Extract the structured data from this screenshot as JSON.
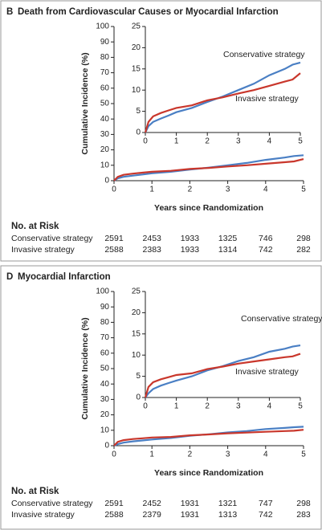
{
  "chart_data": [
    {
      "type": "line",
      "panel": "B",
      "title": "Death from Cardiovascular Causes or Myocardial Infarction",
      "ylabel": "Cumulative Incidence (%)",
      "xlabel": "Years since Randomization",
      "xlim": [
        0,
        5
      ],
      "xticks": [
        0,
        1,
        2,
        3,
        4,
        5
      ],
      "ylim": [
        0,
        100
      ],
      "yticks": [
        0,
        10,
        20,
        30,
        40,
        50,
        60,
        70,
        80,
        90,
        100
      ],
      "x": [
        0,
        0.1,
        0.25,
        0.5,
        0.75,
        1,
        1.5,
        2,
        2.5,
        3,
        3.5,
        4,
        4.5,
        4.75,
        5
      ],
      "series": [
        {
          "name": "Conservative strategy",
          "color": "#4a7fc4",
          "values": [
            0,
            1.5,
            2.5,
            3.3,
            4,
            4.8,
            5.8,
            7.2,
            8.5,
            10,
            11.5,
            13.5,
            15,
            16,
            16.5
          ]
        },
        {
          "name": "Invasive strategy",
          "color": "#c9372c",
          "values": [
            0,
            2.5,
            3.8,
            4.6,
            5.2,
            5.8,
            6.4,
            7.6,
            8.3,
            9.2,
            10,
            11,
            12,
            12.5,
            14
          ]
        }
      ],
      "inset": {
        "xlim": [
          0,
          5
        ],
        "xticks": [
          0,
          1,
          2,
          3,
          4,
          5
        ],
        "ylim": [
          0,
          25
        ],
        "yticks": [
          0,
          5,
          10,
          15,
          20,
          25
        ]
      },
      "risk_table": {
        "title": "No. at Risk",
        "rows": [
          {
            "name": "Conservative strategy",
            "values": [
              2591,
              2453,
              1933,
              1325,
              746,
              298
            ]
          },
          {
            "name": "Invasive strategy",
            "values": [
              2588,
              2383,
              1933,
              1314,
              742,
              282
            ]
          }
        ]
      }
    },
    {
      "type": "line",
      "panel": "D",
      "title": "Myocardial Infarction",
      "ylabel": "Cumulative Incidence (%)",
      "xlabel": "Years since Randomization",
      "xlim": [
        0,
        5
      ],
      "xticks": [
        0,
        1,
        2,
        3,
        4,
        5
      ],
      "ylim": [
        0,
        100
      ],
      "yticks": [
        0,
        10,
        20,
        30,
        40,
        50,
        60,
        70,
        80,
        90,
        100
      ],
      "x": [
        0,
        0.1,
        0.25,
        0.5,
        0.75,
        1,
        1.5,
        2,
        2.5,
        3,
        3.5,
        4,
        4.5,
        4.75,
        5
      ],
      "series": [
        {
          "name": "Conservative strategy",
          "color": "#4a7fc4",
          "values": [
            0,
            1,
            2,
            2.8,
            3.4,
            4,
            5,
            6.4,
            7.4,
            8.6,
            9.5,
            10.8,
            11.5,
            12,
            12.3
          ]
        },
        {
          "name": "Invasive strategy",
          "color": "#c9372c",
          "values": [
            0,
            2.5,
            3.6,
            4.3,
            4.8,
            5.3,
            5.7,
            6.7,
            7.3,
            8,
            8.5,
            9,
            9.5,
            9.7,
            10.3
          ]
        }
      ],
      "inset": {
        "xlim": [
          0,
          5
        ],
        "xticks": [
          0,
          1,
          2,
          3,
          4,
          5
        ],
        "ylim": [
          0,
          25
        ],
        "yticks": [
          0,
          5,
          10,
          15,
          20,
          25
        ]
      },
      "risk_table": {
        "title": "No. at Risk",
        "rows": [
          {
            "name": "Conservative strategy",
            "values": [
              2591,
              2452,
              1931,
              1321,
              747,
              298
            ]
          },
          {
            "name": "Invasive strategy",
            "values": [
              2588,
              2379,
              1931,
              1313,
              742,
              283
            ]
          }
        ]
      }
    }
  ]
}
